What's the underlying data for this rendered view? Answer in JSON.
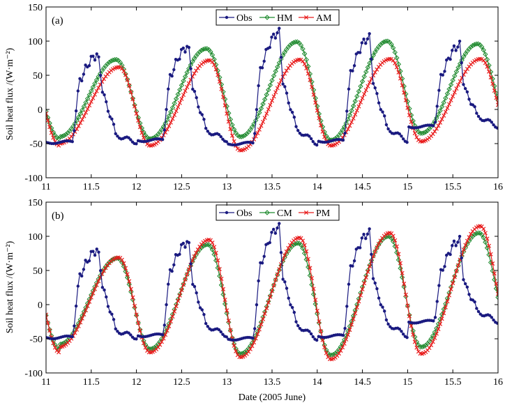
{
  "chart_data": [
    {
      "type": "line",
      "panel_label": "(a)",
      "ylabel": "Soil heat flux /(W·m⁻²)",
      "xlabel": "",
      "xlim": [
        11,
        16
      ],
      "ylim": [
        -100,
        150
      ],
      "x_ticks": [
        11,
        11.5,
        12,
        12.5,
        13,
        13.5,
        14,
        14.5,
        15,
        15.5,
        16
      ],
      "x_tick_labels": [
        "11",
        "11.5",
        "12",
        "12.5",
        "13",
        "13.5",
        "14",
        "14.5",
        "15",
        "15.5",
        "16"
      ],
      "y_ticks": [
        -100,
        -50,
        0,
        50,
        100,
        150
      ],
      "y_tick_labels": [
        "-100",
        "-50",
        "0",
        "50",
        "100",
        "150"
      ],
      "legend_position": "top-center",
      "legend": [
        "Obs",
        "HM",
        "AM"
      ],
      "series": [
        {
          "name": "Obs",
          "color": "#1a1a80",
          "marker": "dot",
          "generator": "obs",
          "day_params": [
            {
              "base": -48,
              "peak": 80,
              "sec": 10
            },
            {
              "base": -45,
              "peak": 92,
              "sec": 14
            },
            {
              "base": -50,
              "peak": 113,
              "sec": 20
            },
            {
              "base": -46,
              "peak": 105,
              "sec": 18
            },
            {
              "base": -25,
              "peak": 94,
              "sec": 15
            }
          ]
        },
        {
          "name": "HM",
          "color": "#1f8a2e",
          "marker": "diamond",
          "generator": "sine",
          "peak_frac": 0.625,
          "mins": [
            -40,
            -43,
            -40,
            -45,
            -35,
            -30
          ],
          "maxs": [
            73,
            89,
            99,
            100,
            96
          ]
        },
        {
          "name": "AM",
          "color": "#e81c1c",
          "marker": "x",
          "generator": "sine",
          "peak_frac": 0.66,
          "mins": [
            -50,
            -53,
            -60,
            -53,
            -47,
            -40
          ],
          "maxs": [
            62,
            72,
            73,
            74,
            74
          ]
        }
      ]
    },
    {
      "type": "line",
      "panel_label": "(b)",
      "ylabel": "Soil heat flux /(W·m⁻²)",
      "xlabel": "Date (2005 June)",
      "xlim": [
        11,
        16
      ],
      "ylim": [
        -100,
        150
      ],
      "x_ticks": [
        11,
        11.5,
        12,
        12.5,
        13,
        13.5,
        14,
        14.5,
        15,
        15.5,
        16
      ],
      "x_tick_labels": [
        "11",
        "11.5",
        "12",
        "12.5",
        "13",
        "13.5",
        "14",
        "14.5",
        "15",
        "15.5",
        "16"
      ],
      "y_ticks": [
        -100,
        -50,
        0,
        50,
        100,
        150
      ],
      "y_tick_labels": [
        "-100",
        "-50",
        "0",
        "50",
        "100",
        "150"
      ],
      "legend_position": "top-center",
      "legend": [
        "Obs",
        "CM",
        "PM"
      ],
      "series": [
        {
          "name": "Obs",
          "color": "#1a1a80",
          "marker": "dot",
          "generator": "obs",
          "day_params": [
            {
              "base": -48,
              "peak": 80,
              "sec": 10
            },
            {
              "base": -45,
              "peak": 92,
              "sec": 14
            },
            {
              "base": -50,
              "peak": 113,
              "sec": 20
            },
            {
              "base": -46,
              "peak": 105,
              "sec": 18
            },
            {
              "base": -25,
              "peak": 94,
              "sec": 15
            }
          ]
        },
        {
          "name": "CM",
          "color": "#1f8a2e",
          "marker": "diamond",
          "generator": "sine",
          "peak_frac": 0.64,
          "mins": [
            -58,
            -65,
            -72,
            -74,
            -62,
            -45
          ],
          "maxs": [
            68,
            88,
            90,
            100,
            105
          ]
        },
        {
          "name": "PM",
          "color": "#e81c1c",
          "marker": "x",
          "generator": "sine",
          "peak_frac": 0.655,
          "mins": [
            -62,
            -70,
            -77,
            -80,
            -72,
            -50
          ],
          "maxs": [
            69,
            95,
            98,
            105,
            115
          ]
        }
      ]
    }
  ]
}
